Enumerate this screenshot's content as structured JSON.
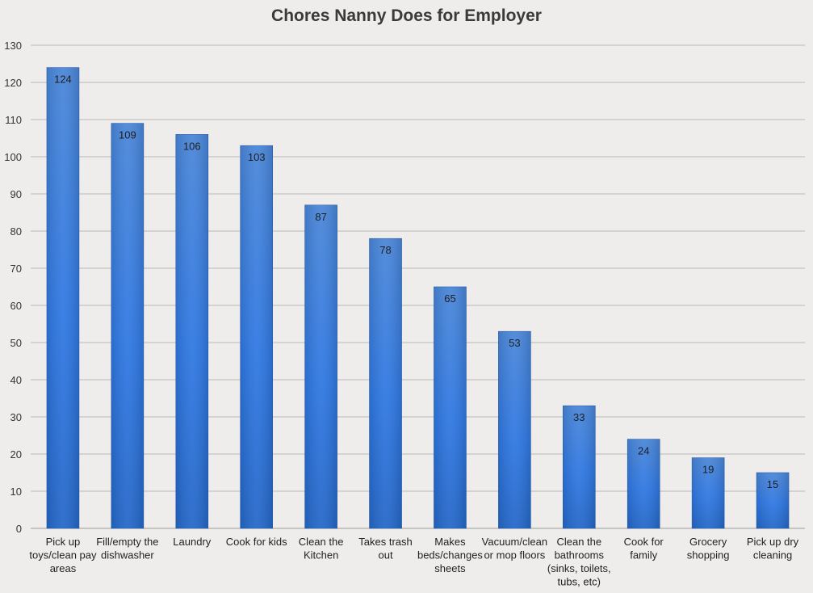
{
  "chart_data": {
    "type": "bar",
    "title": "Chores Nanny Does for Employer",
    "xlabel": "",
    "ylabel": "",
    "ylim": [
      0,
      130
    ],
    "yticks": [
      0,
      10,
      20,
      30,
      40,
      50,
      60,
      70,
      80,
      90,
      100,
      110,
      120,
      130
    ],
    "grid": true,
    "legend": "none",
    "bar_color_top": "#4a86d8",
    "bar_color_mid": "#2f78e3",
    "bar_color_bottom": "#2467c8",
    "grid_color": "#b9b9b9",
    "categories": [
      [
        "Pick up",
        "toys/clean pay",
        "areas"
      ],
      [
        "Fill/empty the",
        "dishwasher"
      ],
      [
        "Laundry"
      ],
      [
        "Cook for kids"
      ],
      [
        "Clean the",
        "Kitchen"
      ],
      [
        "Takes trash",
        "out"
      ],
      [
        "Makes",
        "beds/changes",
        "sheets"
      ],
      [
        "Vacuum/clean",
        "or mop floors"
      ],
      [
        "Clean the",
        "bathrooms",
        "(sinks, toilets,",
        "tubs, etc)"
      ],
      [
        "Cook for",
        "family"
      ],
      [
        "Grocery",
        "shopping"
      ],
      [
        "Pick up dry",
        "cleaning"
      ]
    ],
    "values": [
      124,
      109,
      106,
      103,
      87,
      78,
      65,
      53,
      33,
      24,
      19,
      15
    ]
  }
}
